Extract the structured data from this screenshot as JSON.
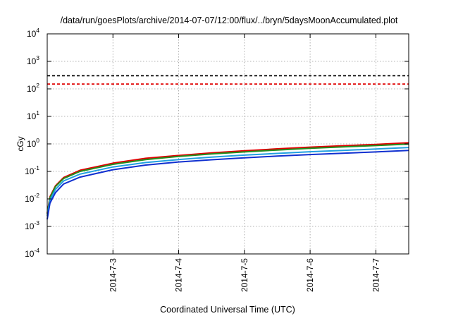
{
  "chart_data": {
    "type": "line",
    "title": "/data/run/goesPlots/archive/2014-07-07/12:00/flux/../bryn/5daysMoonAccumulated.plot",
    "xlabel": "Coordinated Universal Time (UTC)",
    "ylabel": "cGy",
    "x_scale": "time",
    "y_scale": "log",
    "xlim": [
      "2014-07-02 00:00",
      "2014-07-07 12:00"
    ],
    "ylim": [
      0.0001,
      10000
    ],
    "x_ticks": [
      "2014-7-3",
      "2014-7-4",
      "2014-7-5",
      "2014-7-6",
      "2014-7-7"
    ],
    "x_tick_values": [
      "2014-07-03 00:00",
      "2014-07-04 00:00",
      "2014-07-05 00:00",
      "2014-07-06 00:00",
      "2014-07-07 00:00"
    ],
    "y_ticks": [
      {
        "value": 0.0001,
        "base": "10",
        "exp": "-4"
      },
      {
        "value": 0.001,
        "base": "10",
        "exp": "-3"
      },
      {
        "value": 0.01,
        "base": "10",
        "exp": "-2"
      },
      {
        "value": 0.1,
        "base": "10",
        "exp": "-1"
      },
      {
        "value": 1,
        "base": "10",
        "exp": "0"
      },
      {
        "value": 10,
        "base": "10",
        "exp": "1"
      },
      {
        "value": 100,
        "base": "10",
        "exp": "2"
      },
      {
        "value": 1000,
        "base": "10",
        "exp": "3"
      },
      {
        "value": 10000,
        "base": "10",
        "exp": "4"
      }
    ],
    "grid": true,
    "reference_lines": [
      {
        "y": 300,
        "color": "#000000",
        "style": "dashed"
      },
      {
        "y": 150,
        "color": "#e00000",
        "style": "dashed"
      }
    ],
    "series": [
      {
        "color": "#e00000",
        "x": [
          "2014-07-02 00:00",
          "2014-07-02 01:00",
          "2014-07-02 03:00",
          "2014-07-02 06:00",
          "2014-07-02 12:00",
          "2014-07-03 00:00",
          "2014-07-03 12:00",
          "2014-07-04 00:00",
          "2014-07-04 12:00",
          "2014-07-05 00:00",
          "2014-07-05 12:00",
          "2014-07-06 00:00",
          "2014-07-06 12:00",
          "2014-07-07 00:00",
          "2014-07-07 12:00"
        ],
        "y": [
          0.003,
          0.012,
          0.03,
          0.06,
          0.11,
          0.2,
          0.3,
          0.38,
          0.47,
          0.56,
          0.66,
          0.76,
          0.86,
          0.96,
          1.1
        ]
      },
      {
        "color": "#209020",
        "x": [
          "2014-07-02 00:00",
          "2014-07-02 01:00",
          "2014-07-02 03:00",
          "2014-07-02 06:00",
          "2014-07-02 12:00",
          "2014-07-03 00:00",
          "2014-07-03 12:00",
          "2014-07-04 00:00",
          "2014-07-04 12:00",
          "2014-07-05 00:00",
          "2014-07-05 12:00",
          "2014-07-06 00:00",
          "2014-07-06 12:00",
          "2014-07-07 00:00",
          "2014-07-07 12:00"
        ],
        "y": [
          0.0028,
          0.011,
          0.028,
          0.055,
          0.1,
          0.18,
          0.27,
          0.35,
          0.43,
          0.51,
          0.6,
          0.69,
          0.78,
          0.87,
          0.98
        ]
      },
      {
        "color": "#20a0e0",
        "x": [
          "2014-07-02 00:00",
          "2014-07-02 01:00",
          "2014-07-02 03:00",
          "2014-07-02 06:00",
          "2014-07-02 12:00",
          "2014-07-03 00:00",
          "2014-07-03 12:00",
          "2014-07-04 00:00",
          "2014-07-04 12:00",
          "2014-07-05 00:00",
          "2014-07-05 12:00",
          "2014-07-06 00:00",
          "2014-07-06 12:00",
          "2014-07-07 00:00",
          "2014-07-07 12:00"
        ],
        "y": [
          0.0024,
          0.009,
          0.022,
          0.045,
          0.08,
          0.145,
          0.21,
          0.27,
          0.33,
          0.39,
          0.45,
          0.52,
          0.58,
          0.65,
          0.74
        ]
      },
      {
        "color": "#1030d0",
        "x": [
          "2014-07-02 00:00",
          "2014-07-02 01:00",
          "2014-07-02 03:00",
          "2014-07-02 06:00",
          "2014-07-02 12:00",
          "2014-07-03 00:00",
          "2014-07-03 12:00",
          "2014-07-04 00:00",
          "2014-07-04 12:00",
          "2014-07-05 00:00",
          "2014-07-05 12:00",
          "2014-07-06 00:00",
          "2014-07-06 12:00",
          "2014-07-07 00:00",
          "2014-07-07 12:00"
        ],
        "y": [
          0.0018,
          0.007,
          0.017,
          0.035,
          0.062,
          0.115,
          0.17,
          0.22,
          0.265,
          0.31,
          0.36,
          0.41,
          0.46,
          0.51,
          0.58
        ]
      }
    ]
  }
}
